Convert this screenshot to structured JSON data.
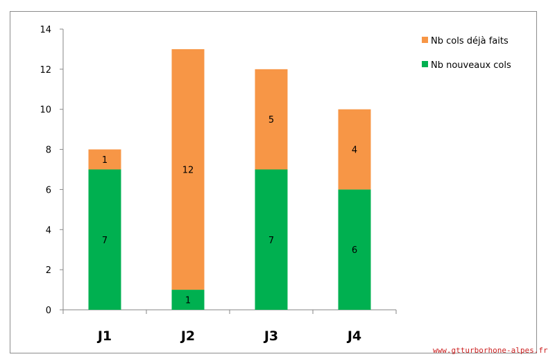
{
  "chart_data": {
    "type": "bar",
    "stacked": true,
    "categories": [
      "J1",
      "J2",
      "J3",
      "J4"
    ],
    "series": [
      {
        "name": "Nb nouveaux cols",
        "values": [
          7,
          1,
          7,
          6
        ],
        "color": "#00b050"
      },
      {
        "name": "Nb cols déjà faits",
        "values": [
          1,
          12,
          5,
          4
        ],
        "color": "#f79646"
      }
    ],
    "legend_order": [
      1,
      0
    ],
    "yticks": [
      0,
      2,
      4,
      6,
      8,
      10,
      12,
      14
    ],
    "ylim": [
      0,
      14
    ],
    "title": "",
    "xlabel": "",
    "ylabel": "",
    "grid": false,
    "legend_position": "top-right",
    "data_labels": true
  },
  "watermark": "www.gtturborhone-alpes.fr"
}
